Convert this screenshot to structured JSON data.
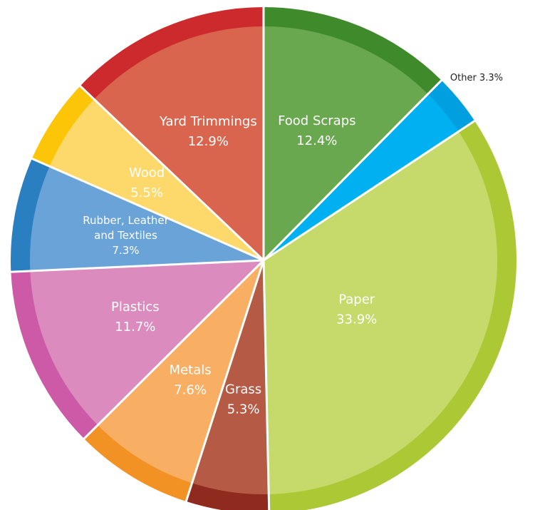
{
  "chart_data": {
    "type": "pie",
    "title": "",
    "slices": [
      {
        "name_lines": [
          "Food Scraps"
        ],
        "value_label": "12.4%",
        "value": 12.4,
        "color": "#6aa84f",
        "ring": "#3f8a2a"
      },
      {
        "name_lines": [
          "Other"
        ],
        "value_label": "3.3%",
        "value": 3.3,
        "color": "#00b0f0",
        "ring": "#00a0e0",
        "outside": true
      },
      {
        "name_lines": [
          "Paper"
        ],
        "value_label": "33.9%",
        "value": 33.9,
        "color": "#c5da6b",
        "ring": "#acc935"
      },
      {
        "name_lines": [
          "Grass"
        ],
        "value_label": "5.3%",
        "value": 5.3,
        "color": "#b55b45",
        "ring": "#8f2a1e"
      },
      {
        "name_lines": [
          "Metals"
        ],
        "value_label": "7.6%",
        "value": 7.6,
        "color": "#f8ae63",
        "ring": "#f39224"
      },
      {
        "name_lines": [
          "Plastics"
        ],
        "value_label": "11.7%",
        "value": 11.7,
        "color": "#db8bbd",
        "ring": "#cc5aa7"
      },
      {
        "name_lines": [
          "Rubber, Leather",
          "and Textiles"
        ],
        "value_label": "7.3%",
        "value": 7.3,
        "color": "#6aa3d8",
        "ring": "#2a7fc0",
        "small": true
      },
      {
        "name_lines": [
          "Wood"
        ],
        "value_label": "5.5%",
        "value": 5.5,
        "color": "#fdd86a",
        "ring": "#fcc508"
      },
      {
        "name_lines": [
          "Yard Trimmings"
        ],
        "value_label": "12.9%",
        "value": 12.9,
        "color": "#d9654e",
        "ring": "#cc2a2c"
      }
    ]
  }
}
